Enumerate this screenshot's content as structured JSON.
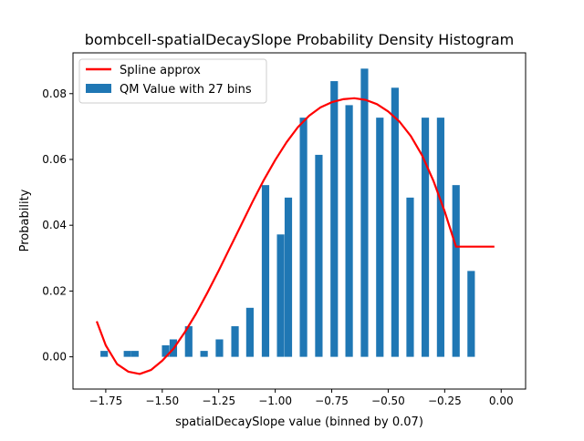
{
  "chart_data": {
    "type": "bar",
    "title": "bombcell-spatialDecaySlope Probability Density Histogram",
    "xlabel": "spatialDecaySlope value (binned by 0.07)",
    "ylabel": "Probability",
    "xlim": [
      -1.895,
      0.108
    ],
    "ylim": [
      -0.0098,
      0.0924
    ],
    "xticks": [
      -1.75,
      -1.5,
      -1.25,
      -1.0,
      -0.75,
      -0.5,
      -0.25,
      0.0
    ],
    "xtick_labels": [
      "−1.75",
      "−1.50",
      "−1.25",
      "−1.00",
      "−0.75",
      "−0.50",
      "−0.25",
      "0.00"
    ],
    "yticks": [
      0.0,
      0.02,
      0.04,
      0.06,
      0.08
    ],
    "ytick_labels": [
      "0.00",
      "0.02",
      "0.04",
      "0.06",
      "0.08"
    ],
    "grid": false,
    "legend": {
      "placement": "top-left"
    },
    "bar_width": 0.033,
    "series": [
      {
        "name": "QM Value with 27 bins",
        "kind": "bar",
        "color": "#1f77b4",
        "x": [
          -1.757,
          -1.654,
          -1.621,
          -1.485,
          -1.451,
          -1.383,
          -1.315,
          -1.247,
          -1.178,
          -1.112,
          -1.043,
          -0.976,
          -0.942,
          -0.875,
          -0.807,
          -0.739,
          -0.673,
          -0.605,
          -0.537,
          -0.47,
          -0.403,
          -0.336,
          -0.268,
          -0.2,
          -0.133,
          -0.065,
          -0.0
        ],
        "values": [
          0.0018,
          0.0018,
          0.0018,
          0.0035,
          0.0053,
          0.0093,
          0.0018,
          0.0053,
          0.0093,
          0.0149,
          0.0522,
          0.0372,
          0.0484,
          0.0727,
          0.0614,
          0.0838,
          0.0765,
          0.0876,
          0.0727,
          0.0818,
          0.0484,
          0.0727,
          0.0727,
          0.0522,
          0.0261,
          0.0,
          0.0
        ]
      },
      {
        "name": "Spline approx",
        "kind": "line",
        "color": "#ff0000",
        "x": [
          -1.79,
          -1.75,
          -1.7,
          -1.65,
          -1.6,
          -1.55,
          -1.5,
          -1.45,
          -1.4,
          -1.35,
          -1.3,
          -1.25,
          -1.2,
          -1.15,
          -1.1,
          -1.05,
          -1.0,
          -0.95,
          -0.9,
          -0.85,
          -0.8,
          -0.75,
          -0.7,
          -0.65,
          -0.6,
          -0.55,
          -0.5,
          -0.45,
          -0.4,
          -0.35,
          -0.3,
          -0.25,
          -0.2,
          -0.15,
          -0.1,
          -0.05,
          -0.03
        ],
        "values": [
          0.0108,
          0.0035,
          -0.0022,
          -0.0045,
          -0.0052,
          -0.004,
          -0.0012,
          0.0025,
          0.0075,
          0.0132,
          0.0195,
          0.0262,
          0.0332,
          0.0402,
          0.0472,
          0.0538,
          0.0598,
          0.0652,
          0.0698,
          0.0733,
          0.0758,
          0.0774,
          0.0783,
          0.0786,
          0.0781,
          0.0768,
          0.0746,
          0.0715,
          0.0671,
          0.0612,
          0.0535,
          0.0442,
          0.0335,
          0.0335,
          0.0335,
          0.0335,
          0.0335
        ]
      }
    ]
  }
}
